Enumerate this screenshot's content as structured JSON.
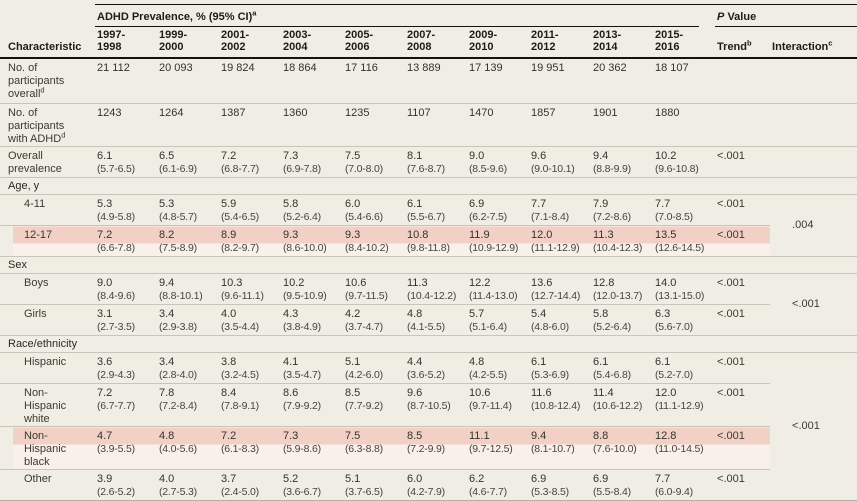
{
  "colors": {
    "background": "#f0eee4",
    "highlight_band": "#f3d0c6",
    "highlight_fade": "#faf0ea",
    "header_rule": "#141310",
    "row_rule": "#c9c6b8",
    "text": "#3a3932"
  },
  "header": {
    "characteristic": "Characteristic",
    "group": {
      "label": "ADHD Prevalence, % (95% CI)",
      "sup": "a"
    },
    "p_value": {
      "italic": "P",
      "rest": " Value"
    },
    "years": [
      {
        "l1": "1997-",
        "l2": "1998"
      },
      {
        "l1": "1999-",
        "l2": "2000"
      },
      {
        "l1": "2001-",
        "l2": "2002"
      },
      {
        "l1": "2003-",
        "l2": "2004"
      },
      {
        "l1": "2005-",
        "l2": "2006"
      },
      {
        "l1": "2007-",
        "l2": "2008"
      },
      {
        "l1": "2009-",
        "l2": "2010"
      },
      {
        "l1": "2011-",
        "l2": "2012"
      },
      {
        "l1": "2013-",
        "l2": "2014"
      },
      {
        "l1": "2015-",
        "l2": "2016"
      }
    ],
    "trend": {
      "label": "Trend",
      "sup": "b"
    },
    "interaction": {
      "label": "Interaction",
      "sup": "c"
    }
  },
  "rows": [
    {
      "kind": "data",
      "label": "No. of participants overall",
      "sup": "d",
      "indent": false,
      "highlight": false,
      "cells": [
        {
          "v": "21 112"
        },
        {
          "v": "20 093"
        },
        {
          "v": "19 824"
        },
        {
          "v": "18 864"
        },
        {
          "v": "17 116"
        },
        {
          "v": "13 889"
        },
        {
          "v": "17 139"
        },
        {
          "v": "19 951"
        },
        {
          "v": "20 362"
        },
        {
          "v": "18 107"
        }
      ],
      "trend": "",
      "interaction": {
        "span": 1,
        "value": ""
      }
    },
    {
      "kind": "data",
      "label": "No. of participants with ADHD",
      "sup": "d",
      "indent": false,
      "highlight": false,
      "cells": [
        {
          "v": "1243"
        },
        {
          "v": "1264"
        },
        {
          "v": "1387"
        },
        {
          "v": "1360"
        },
        {
          "v": "1235"
        },
        {
          "v": "1107"
        },
        {
          "v": "1470"
        },
        {
          "v": "1857"
        },
        {
          "v": "1901"
        },
        {
          "v": "1880"
        }
      ],
      "trend": "",
      "interaction": {
        "span": 1,
        "value": ""
      }
    },
    {
      "kind": "data",
      "label": "Overall prevalence",
      "indent": false,
      "highlight": false,
      "cells": [
        {
          "v": "6.1",
          "ci": "(5.7-6.5)"
        },
        {
          "v": "6.5",
          "ci": "(6.1-6.9)"
        },
        {
          "v": "7.2",
          "ci": "(6.8-7.7)"
        },
        {
          "v": "7.3",
          "ci": "(6.9-7.8)"
        },
        {
          "v": "7.5",
          "ci": "(7.0-8.0)"
        },
        {
          "v": "8.1",
          "ci": "(7.6-8.7)"
        },
        {
          "v": "9.0",
          "ci": "(8.5-9.6)"
        },
        {
          "v": "9.6",
          "ci": "(9.0-10.1)"
        },
        {
          "v": "9.4",
          "ci": "(8.8-9.9)"
        },
        {
          "v": "10.2",
          "ci": "(9.6-10.8)"
        }
      ],
      "trend": "<.001",
      "interaction": {
        "span": 1,
        "value": ""
      }
    },
    {
      "kind": "section",
      "label": "Age, y",
      "interaction": {
        "span": 1,
        "value": ""
      }
    },
    {
      "kind": "data",
      "label": "4-11",
      "indent": true,
      "highlight": false,
      "cells": [
        {
          "v": "5.3",
          "ci": "(4.9-5.8)"
        },
        {
          "v": "5.3",
          "ci": "(4.8-5.7)"
        },
        {
          "v": "5.9",
          "ci": "(5.4-6.5)"
        },
        {
          "v": "5.8",
          "ci": "(5.2-6.4)"
        },
        {
          "v": "6.0",
          "ci": "(5.4-6.6)"
        },
        {
          "v": "6.1",
          "ci": "(5.5-6.7)"
        },
        {
          "v": "6.9",
          "ci": "(6.2-7.5)"
        },
        {
          "v": "7.7",
          "ci": "(7.1-8.4)"
        },
        {
          "v": "7.9",
          "ci": "(7.2-8.6)"
        },
        {
          "v": "7.7",
          "ci": "(7.0-8.5)"
        }
      ],
      "trend": "<.001",
      "interaction": {
        "span": 2,
        "value": ".004"
      }
    },
    {
      "kind": "data",
      "label": "12-17",
      "indent": true,
      "highlight": true,
      "cells": [
        {
          "v": "7.2",
          "ci": "(6.6-7.8)"
        },
        {
          "v": "8.2",
          "ci": "(7.5-8.9)"
        },
        {
          "v": "8.9",
          "ci": "(8.2-9.7)"
        },
        {
          "v": "9.3",
          "ci": "(8.6-10.0)"
        },
        {
          "v": "9.3",
          "ci": "(8.4-10.2)"
        },
        {
          "v": "10.8",
          "ci": "(9.8-11.8)"
        },
        {
          "v": "11.9",
          "ci": "(10.9-12.9)"
        },
        {
          "v": "12.0",
          "ci": "(11.1-12.9)"
        },
        {
          "v": "11.3",
          "ci": "(10.4-12.3)"
        },
        {
          "v": "13.5",
          "ci": "(12.6-14.5)"
        }
      ],
      "trend": "<.001",
      "interaction": null
    },
    {
      "kind": "section",
      "label": "Sex",
      "interaction": {
        "span": 1,
        "value": ""
      }
    },
    {
      "kind": "data",
      "label": "Boys",
      "indent": true,
      "highlight": false,
      "cells": [
        {
          "v": "9.0",
          "ci": "(8.4-9.6)"
        },
        {
          "v": "9.4",
          "ci": "(8.8-10.1)"
        },
        {
          "v": "10.3",
          "ci": "(9.6-11.1)"
        },
        {
          "v": "10.2",
          "ci": "(9.5-10.9)"
        },
        {
          "v": "10.6",
          "ci": "(9.7-11.5)"
        },
        {
          "v": "11.3",
          "ci": "(10.4-12.2)"
        },
        {
          "v": "12.2",
          "ci": "(11.4-13.0)"
        },
        {
          "v": "13.6",
          "ci": "(12.7-14.4)"
        },
        {
          "v": "12.8",
          "ci": "(12.0-13.7)"
        },
        {
          "v": "14.0",
          "ci": "(13.1-15.0)"
        }
      ],
      "trend": "<.001",
      "interaction": {
        "span": 2,
        "value": "<.001"
      }
    },
    {
      "kind": "data",
      "label": "Girls",
      "indent": true,
      "highlight": false,
      "cells": [
        {
          "v": "3.1",
          "ci": "(2.7-3.5)"
        },
        {
          "v": "3.4",
          "ci": "(2.9-3.8)"
        },
        {
          "v": "4.0",
          "ci": "(3.5-4.4)"
        },
        {
          "v": "4.3",
          "ci": "(3.8-4.9)"
        },
        {
          "v": "4.2",
          "ci": "(3.7-4.7)"
        },
        {
          "v": "4.8",
          "ci": "(4.1-5.5)"
        },
        {
          "v": "5.7",
          "ci": "(5.1-6.4)"
        },
        {
          "v": "5.4",
          "ci": "(4.8-6.0)"
        },
        {
          "v": "5.8",
          "ci": "(5.2-6.4)"
        },
        {
          "v": "6.3",
          "ci": "(5.6-7.0)"
        }
      ],
      "trend": "<.001",
      "interaction": null
    },
    {
      "kind": "section",
      "label": "Race/ethnicity",
      "interaction": {
        "span": 1,
        "value": ""
      }
    },
    {
      "kind": "data",
      "label": "Hispanic",
      "indent": true,
      "highlight": false,
      "cells": [
        {
          "v": "3.6",
          "ci": "(2.9-4.3)"
        },
        {
          "v": "3.4",
          "ci": "(2.8-4.0)"
        },
        {
          "v": "3.8",
          "ci": "(3.2-4.5)"
        },
        {
          "v": "4.1",
          "ci": "(3.5-4.7)"
        },
        {
          "v": "5.1",
          "ci": "(4.2-6.0)"
        },
        {
          "v": "4.4",
          "ci": "(3.6-5.2)"
        },
        {
          "v": "4.8",
          "ci": "(4.2-5.5)"
        },
        {
          "v": "6.1",
          "ci": "(5.3-6.9)"
        },
        {
          "v": "6.1",
          "ci": "(5.4-6.8)"
        },
        {
          "v": "6.1",
          "ci": "(5.2-7.0)"
        }
      ],
      "trend": "<.001",
      "interaction": {
        "span": 4,
        "value": "<.001"
      }
    },
    {
      "kind": "data",
      "label": "Non-Hispanic white",
      "indent": true,
      "highlight": false,
      "cells": [
        {
          "v": "7.2",
          "ci": "(6.7-7.7)"
        },
        {
          "v": "7.8",
          "ci": "(7.2-8.4)"
        },
        {
          "v": "8.4",
          "ci": "(7.8-9.1)"
        },
        {
          "v": "8.6",
          "ci": "(7.9-9.2)"
        },
        {
          "v": "8.5",
          "ci": "(7.7-9.2)"
        },
        {
          "v": "9.6",
          "ci": "(8.7-10.5)"
        },
        {
          "v": "10.6",
          "ci": "(9.7-11.4)"
        },
        {
          "v": "11.6",
          "ci": "(10.8-12.4)"
        },
        {
          "v": "11.4",
          "ci": "(10.6-12.2)"
        },
        {
          "v": "12.0",
          "ci": "(11.1-12.9)"
        }
      ],
      "trend": "<.001",
      "interaction": null
    },
    {
      "kind": "data",
      "label": "Non-Hispanic black",
      "indent": true,
      "highlight": true,
      "cells": [
        {
          "v": "4.7",
          "ci": "(3.9-5.5)"
        },
        {
          "v": "4.8",
          "ci": "(4.0-5.6)"
        },
        {
          "v": "7.2",
          "ci": "(6.1-8.3)"
        },
        {
          "v": "7.3",
          "ci": "(5.9-8.6)"
        },
        {
          "v": "7.5",
          "ci": "(6.3-8.8)"
        },
        {
          "v": "8.5",
          "ci": "(7.2-9.9)"
        },
        {
          "v": "11.1",
          "ci": "(9.7-12.5)"
        },
        {
          "v": "9.4",
          "ci": "(8.1-10.7)"
        },
        {
          "v": "8.8",
          "ci": "(7.6-10.0)"
        },
        {
          "v": "12.8",
          "ci": "(11.0-14.5)"
        }
      ],
      "trend": "<.001",
      "interaction": null
    },
    {
      "kind": "data",
      "label": "Other",
      "indent": true,
      "highlight": false,
      "cells": [
        {
          "v": "3.9",
          "ci": "(2.6-5.2)"
        },
        {
          "v": "4.0",
          "ci": "(2.7-5.3)"
        },
        {
          "v": "3.7",
          "ci": "(2.4-5.0)"
        },
        {
          "v": "5.2",
          "ci": "(3.6-6.7)"
        },
        {
          "v": "5.1",
          "ci": "(3.7-6.5)"
        },
        {
          "v": "6.0",
          "ci": "(4.2-7.9)"
        },
        {
          "v": "6.2",
          "ci": "(4.6-7.7)"
        },
        {
          "v": "6.9",
          "ci": "(5.3-8.5)"
        },
        {
          "v": "6.9",
          "ci": "(5.5-8.4)"
        },
        {
          "v": "7.7",
          "ci": "(6.0-9.4)"
        }
      ],
      "trend": "<.001",
      "interaction": null
    }
  ]
}
